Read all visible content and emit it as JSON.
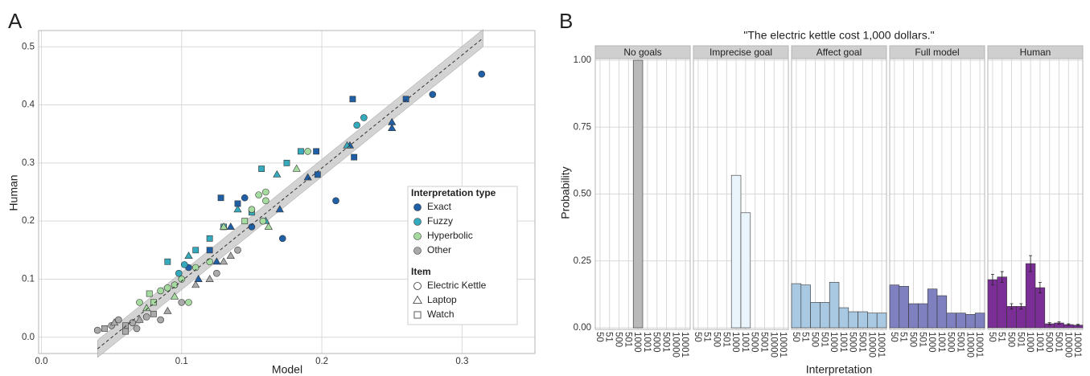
{
  "chart_data": [
    {
      "type": "scatter",
      "label": "A",
      "xlabel": "Model",
      "ylabel": "Human",
      "xlim": [
        -0.002,
        0.352
      ],
      "ylim": [
        -0.028,
        0.528
      ],
      "xticks": [
        {
          "value": 0,
          "label": "0.0"
        },
        0.1,
        0.2,
        0.3
      ],
      "yticks": [
        {
          "value": 0,
          "label": "0.0"
        },
        0.1,
        0.2,
        0.3,
        0.4,
        0.5
      ],
      "grid": true,
      "legend_title": "Interpretation type",
      "items_title": "Item",
      "items": [
        "Electric Kettle",
        "Laptop",
        "Watch"
      ],
      "fit": {
        "x": [
          0.04,
          0.315
        ],
        "values": [
          -0.02,
          0.515
        ],
        "lower": [
          -0.035,
          0.5
        ],
        "upper": [
          -0.005,
          0.53
        ]
      },
      "series": [
        {
          "name": "Exact",
          "color": "#1f5fa6",
          "x": [
            0.314,
            0.279,
            0.26,
            0.222,
            0.25,
            0.25,
            0.22,
            0.223,
            0.21,
            0.196,
            0.197,
            0.19,
            0.172,
            0.17,
            0.15,
            0.145,
            0.135,
            0.128,
            0.14,
            0.12,
            0.125,
            0.105,
            0.112
          ],
          "values": [
            0.453,
            0.418,
            0.41,
            0.41,
            0.37,
            0.36,
            0.33,
            0.31,
            0.235,
            0.32,
            0.28,
            0.275,
            0.17,
            0.22,
            0.19,
            0.24,
            0.19,
            0.24,
            0.23,
            0.15,
            0.13,
            0.12,
            0.1
          ],
          "items": [
            "Electric Kettle",
            "Electric Kettle",
            "Watch",
            "Watch",
            "Laptop",
            "Laptop",
            "Laptop",
            "Watch",
            "Electric Kettle",
            "Watch",
            "Watch",
            "Laptop",
            "Electric Kettle",
            "Laptop",
            "Electric Kettle",
            "Electric Kettle",
            "Laptop",
            "Watch",
            "Watch",
            "Watch",
            "Laptop",
            "Electric Kettle",
            "Laptop"
          ]
        },
        {
          "name": "Fuzzy",
          "color": "#36aabd",
          "x": [
            0.23,
            0.225,
            0.218,
            0.185,
            0.175,
            0.168,
            0.157,
            0.15,
            0.16,
            0.14,
            0.13,
            0.12,
            0.11,
            0.102,
            0.098,
            0.105,
            0.09
          ],
          "values": [
            0.378,
            0.365,
            0.33,
            0.32,
            0.3,
            0.28,
            0.29,
            0.215,
            0.2,
            0.22,
            0.19,
            0.17,
            0.15,
            0.125,
            0.11,
            0.14,
            0.13
          ],
          "items": [
            "Electric Kettle",
            "Electric Kettle",
            "Laptop",
            "Watch",
            "Watch",
            "Laptop",
            "Watch",
            "Watch",
            "Laptop",
            "Laptop",
            "Watch",
            "Watch",
            "Watch",
            "Electric Kettle",
            "Electric Kettle",
            "Laptop",
            "Watch"
          ]
        },
        {
          "name": "Hyperbolic",
          "color": "#a6dba0",
          "x": [
            0.19,
            0.182,
            0.16,
            0.155,
            0.16,
            0.15,
            0.158,
            0.162,
            0.145,
            0.13,
            0.12,
            0.11,
            0.1,
            0.095,
            0.09,
            0.085,
            0.077,
            0.08,
            0.075,
            0.07,
            0.095,
            0.105
          ],
          "values": [
            0.32,
            0.29,
            0.25,
            0.245,
            0.235,
            0.22,
            0.2,
            0.19,
            0.2,
            0.19,
            0.13,
            0.12,
            0.1,
            0.09,
            0.085,
            0.08,
            0.075,
            0.06,
            0.05,
            0.06,
            0.07,
            0.06
          ],
          "items": [
            "Electric Kettle",
            "Laptop",
            "Electric Kettle",
            "Electric Kettle",
            "Electric Kettle",
            "Electric Kettle",
            "Electric Kettle",
            "Laptop",
            "Watch",
            "Laptop",
            "Electric Kettle",
            "Electric Kettle",
            "Electric Kettle",
            "Electric Kettle",
            "Electric Kettle",
            "Electric Kettle",
            "Watch",
            "Watch",
            "Laptop",
            "Electric Kettle",
            "Laptop",
            "Electric Kettle"
          ]
        },
        {
          "name": "Other",
          "color": "#aaaaaa",
          "x": [
            0.04,
            0.045,
            0.05,
            0.052,
            0.055,
            0.06,
            0.065,
            0.07,
            0.075,
            0.08,
            0.085,
            0.09,
            0.1,
            0.11,
            0.12,
            0.125,
            0.13,
            0.135,
            0.14,
            0.06,
            0.068
          ],
          "values": [
            0.012,
            0.015,
            0.02,
            0.025,
            0.03,
            0.02,
            0.025,
            0.03,
            0.035,
            0.04,
            0.03,
            0.045,
            0.06,
            0.09,
            0.1,
            0.11,
            0.13,
            0.14,
            0.15,
            0.01,
            0.015
          ],
          "items": [
            "Electric Kettle",
            "Watch",
            "Electric Kettle",
            "Laptop",
            "Electric Kettle",
            "Watch",
            "Electric Kettle",
            "Laptop",
            "Electric Kettle",
            "Watch",
            "Electric Kettle",
            "Laptop",
            "Electric Kettle",
            "Laptop",
            "Laptop",
            "Electric Kettle",
            "Laptop",
            "Laptop",
            "Electric Kettle",
            "Watch",
            "Electric Kettle"
          ]
        }
      ]
    },
    {
      "type": "bar",
      "label": "B",
      "title": "\"The electric kettle cost 1,000 dollars.\"",
      "xlabel": "Interpretation",
      "ylabel": "Probability",
      "ylim": [
        0,
        1
      ],
      "yticks": [
        {
          "value": 0,
          "label": "0.00"
        },
        {
          "value": 0.25,
          "label": "0.25"
        },
        {
          "value": 0.5,
          "label": "0.50"
        },
        {
          "value": 0.75,
          "label": "0.75"
        },
        {
          "value": 1,
          "label": "1.00"
        }
      ],
      "grid": true,
      "categories": [
        "50",
        "51",
        "500",
        "501",
        "1000",
        "1001",
        "5000",
        "5001",
        "10000",
        "10001"
      ],
      "facets": [
        {
          "name": "No goals",
          "color": "#b9b9b9",
          "values": [
            0,
            0,
            0,
            0,
            1,
            0,
            0,
            0,
            0,
            0
          ]
        },
        {
          "name": "Imprecise goal",
          "color": "#eaf4fb",
          "values": [
            0,
            0,
            0,
            0,
            0.57,
            0.43,
            0,
            0,
            0,
            0
          ]
        },
        {
          "name": "Affect goal",
          "color": "#a9c8e1",
          "values": [
            0.165,
            0.16,
            0.095,
            0.095,
            0.17,
            0.075,
            0.06,
            0.06,
            0.055,
            0.055
          ]
        },
        {
          "name": "Full model",
          "color": "#7e80c0",
          "values": [
            0.16,
            0.155,
            0.09,
            0.09,
            0.145,
            0.12,
            0.055,
            0.055,
            0.05,
            0.055
          ]
        },
        {
          "name": "Human",
          "color": "#7b2f96",
          "values": [
            0.18,
            0.19,
            0.08,
            0.08,
            0.24,
            0.15,
            0.015,
            0.018,
            0.012,
            0.01
          ],
          "errors": [
            0.02,
            0.02,
            0.01,
            0.01,
            0.03,
            0.02,
            0.004,
            0.004,
            0.003,
            0.003
          ]
        }
      ]
    }
  ]
}
